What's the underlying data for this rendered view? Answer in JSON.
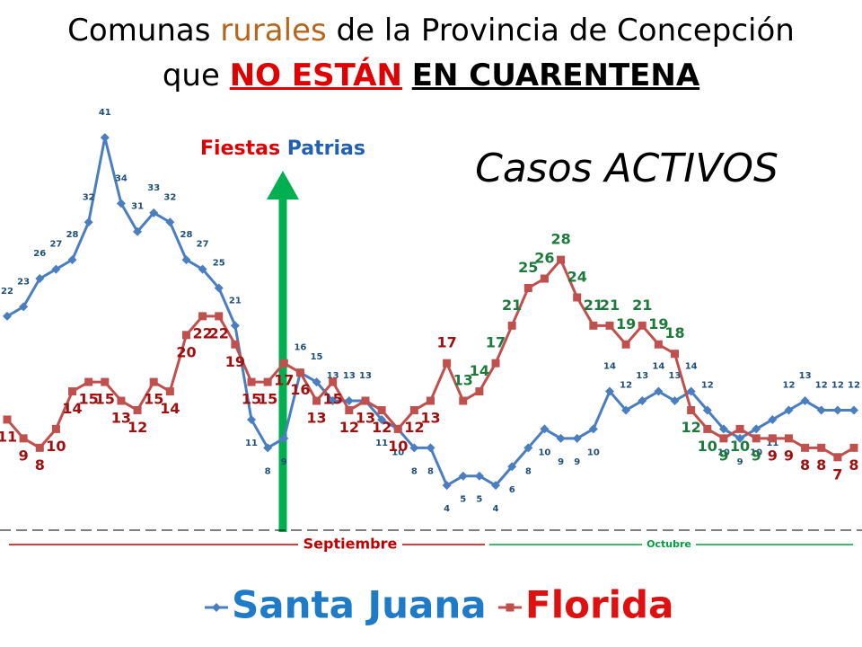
{
  "chart_data": {
    "type": "line",
    "title": [
      [
        "Comunas ",
        "rurales",
        " de la Provincia de Concepción"
      ],
      [
        "que ",
        "NO ESTÁN",
        " ",
        "EN CUARENTENA"
      ]
    ],
    "annotations": {
      "event": "Fiestas Patrias",
      "subtitle": "Casos ACTIVOS"
    },
    "x_groups": [
      "Septiembre",
      "Octubre"
    ],
    "group_colors": [
      "#c00000",
      "#00a040"
    ],
    "categories": [
      null,
      null,
      null,
      null,
      null,
      null,
      null,
      null,
      null,
      null,
      null,
      null,
      null,
      null,
      null,
      null,
      null,
      null,
      null,
      null,
      null,
      null,
      null,
      null,
      null,
      null,
      null,
      null,
      null,
      null,
      null,
      null,
      null,
      null,
      null,
      null,
      null,
      null,
      null,
      null,
      null,
      null,
      null,
      null,
      null,
      null,
      null,
      null,
      null,
      null,
      null,
      null,
      null
    ],
    "series": [
      {
        "name": "Santa Juana",
        "color": "#4a7ebf",
        "label_color": "#1f4e79",
        "values": [
          22,
          23,
          26,
          27,
          28,
          32,
          41,
          34,
          31,
          33,
          32,
          28,
          27,
          25,
          21,
          11,
          8,
          9,
          16,
          15,
          13,
          13,
          13,
          11,
          10,
          8,
          8,
          4,
          5,
          5,
          4,
          6,
          8,
          10,
          9,
          9,
          10,
          14,
          12,
          13,
          14,
          13,
          14,
          12,
          10,
          9,
          10,
          11,
          12,
          13,
          12,
          12,
          12
        ]
      },
      {
        "name": "Florida",
        "color": "#c0504d",
        "label_color": "#a01010",
        "values": [
          11,
          9,
          8,
          10,
          14,
          15,
          15,
          13,
          12,
          15,
          14,
          20,
          22,
          22,
          19,
          15,
          15,
          17,
          16,
          13,
          15,
          12,
          13,
          12,
          10,
          12,
          13,
          17,
          13,
          14,
          17,
          21,
          25,
          26,
          28,
          24,
          21,
          21,
          19,
          21,
          19,
          18,
          12,
          10,
          9,
          10,
          9,
          9,
          9,
          8,
          8,
          7,
          8
        ]
      }
    ],
    "grid": false
  }
}
